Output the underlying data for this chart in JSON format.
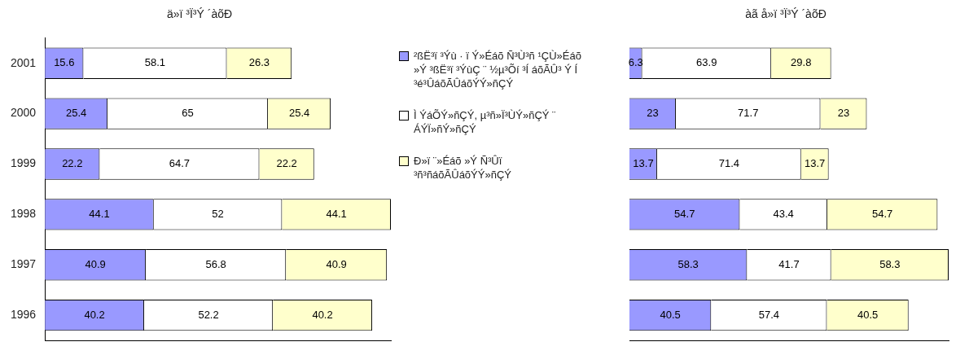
{
  "chart_data": [
    {
      "type": "bar",
      "orientation": "horizontal",
      "stacked": true,
      "title": "ä»ï ³Ï³Ý ´àõÐ",
      "categories": [
        "2001",
        "2000",
        "1999",
        "1998",
        "1997",
        "1996"
      ],
      "data_labels": true,
      "grid": false,
      "legend": "right",
      "tick_labels": "y",
      "series": [
        {
          "name": "²ßË³ï ³Ýù · ï Ý»Éáõ Ñ³Ù³ñ ¹ÇÙ»Éáõ »Ý ³ßË³ï ³ÝùÇ ¨ ½µ³Õí ³Í áõÃÛ³ Ý Í ³é³ÛáõÃÛáõÝÝ»ñÇÝ",
          "color": "#9999ff",
          "values": [
            15.6,
            25.4,
            22.2,
            44.1,
            40.9,
            40.2
          ]
        },
        {
          "name": "Ì ÝáÕÝ»ñÇÝ, µ³ñ»Ï³ÙÝ»ñÇÝ ¨ ÁÝÏ»ñÝ»ñÇÝ",
          "color": "#ffffff",
          "values": [
            58.1,
            65,
            64.7,
            52,
            56.8,
            52.2
          ]
        },
        {
          "name": "Ð»ï ¨»Éáõ »Ý Ñ³Ûï ³ñ³ñáõÃÛáõÝÝ»ñÇÝ",
          "color": "#ffffcc",
          "values": [
            26.3,
            25.4,
            22.2,
            44.1,
            40.9,
            40.2
          ]
        }
      ]
    },
    {
      "type": "bar",
      "orientation": "horizontal",
      "stacked": true,
      "title": "àã å»ï ³Ï³Ý ´àõÐ",
      "categories": [
        null,
        null,
        null,
        null,
        null,
        null
      ],
      "data_labels": true,
      "grid": false,
      "tick_labels": false,
      "series": [
        {
          "color": "#9999ff",
          "values": [
            6.3,
            23,
            13.7,
            54.7,
            58.3,
            40.5
          ]
        },
        {
          "color": "#ffffff",
          "values": [
            63.9,
            71.7,
            71.4,
            43.4,
            41.7,
            57.4
          ]
        },
        {
          "color": "#ffffcc",
          "values": [
            29.8,
            23,
            13.7,
            54.7,
            58.3,
            40.5
          ]
        }
      ]
    }
  ]
}
